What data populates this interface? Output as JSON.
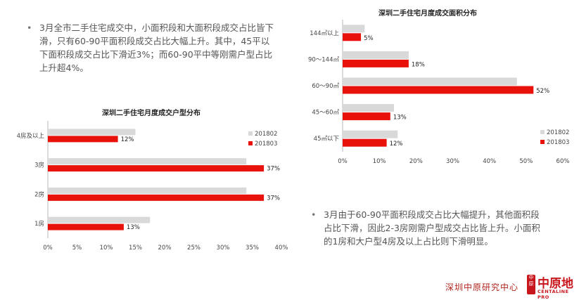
{
  "bullets": [
    {
      "dot": "•",
      "text": "3月全市二手住宅成交中，小面积段和大面积段成交占比皆下滑，只有60-90平面积段成交占比大幅上升。其中，45平以下面积段成交占比下滑近3%；而60-90平中等刚需户型占比上升超4%。"
    },
    {
      "dot": "•",
      "text": "3月由于60-90平面积段成交占比大幅提升，其他面积段占比下滑，因此2-3房刚需户型成交占比皆上升。小面积的1房和大户型4房及以上占比则下滑明显。"
    }
  ],
  "footer": {
    "org": "深圳中原研究中心",
    "seal": "中原",
    "brand": "中原地",
    "brand_en": "CENTALINE PRO"
  },
  "chart_data": [
    {
      "type": "bar",
      "orientation": "horizontal",
      "title": "深圳二手住宅月度成交户型分布",
      "categories": [
        "4房及以上",
        "3房",
        "2房",
        "1房"
      ],
      "series": [
        {
          "name": "201802",
          "values": [
            15,
            34,
            34,
            17.5
          ],
          "color": "#d9d9d9"
        },
        {
          "name": "201803",
          "values": [
            12,
            37,
            37,
            13
          ],
          "color": "#e8120b"
        }
      ],
      "data_labels": [
        "12%",
        "37%",
        "37%",
        "13%"
      ],
      "xlim": [
        0,
        40
      ],
      "xticks": [
        "0%",
        "5%",
        "10%",
        "15%",
        "20%",
        "25%",
        "30%",
        "35%",
        "40%"
      ],
      "legend": "right"
    },
    {
      "type": "bar",
      "orientation": "horizontal",
      "title": "深圳二手住宅月度成交面积分布",
      "categories": [
        "144㎡以上",
        "90～144㎡",
        "60～90㎡",
        "45～60㎡",
        "45㎡以下"
      ],
      "series": [
        {
          "name": "201802",
          "values": [
            6,
            18,
            47.5,
            14,
            15
          ],
          "color": "#d9d9d9"
        },
        {
          "name": "201803",
          "values": [
            5,
            18,
            52,
            13,
            12
          ],
          "color": "#e8120b"
        }
      ],
      "data_labels": [
        "5%",
        "18%",
        "52%",
        "13%",
        "12%"
      ],
      "xlim": [
        0,
        60
      ],
      "xticks": [
        "0%",
        "10%",
        "20%",
        "30%",
        "40%",
        "50%",
        "60%"
      ],
      "legend": "right"
    }
  ]
}
